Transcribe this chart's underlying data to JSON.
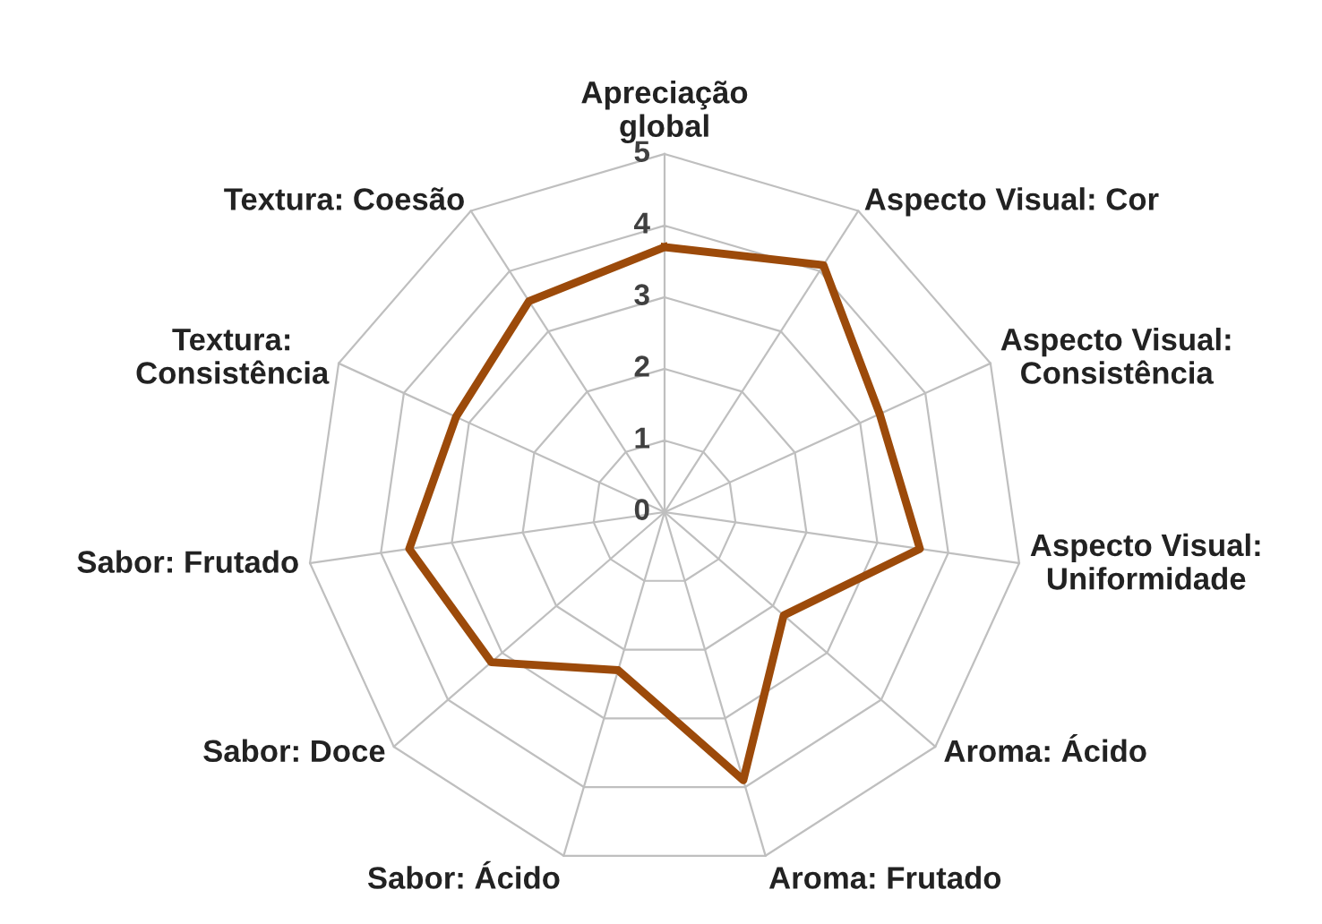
{
  "chart_data": {
    "type": "radar",
    "categories": [
      "Apreciação\nglobal",
      "Aspecto Visual: Cor",
      "Aspecto Visual:\nConsistência",
      "Aspecto Visual:\nUniformidade",
      "Aroma: Ácido",
      "Aroma: Frutado",
      "Sabor: Ácido",
      "Sabor: Doce",
      "Sabor: Frutado",
      "Textura:\nConsistência",
      "Textura: Coesão"
    ],
    "series": [
      {
        "color": "#9c4a0a",
        "values": [
          3.7,
          4.1,
          3.3,
          3.6,
          2.2,
          3.9,
          2.3,
          3.2,
          3.6,
          3.2,
          3.5
        ]
      }
    ],
    "ylim": [
      0,
      5
    ],
    "yticks": [
      0,
      1,
      2,
      3,
      4,
      5
    ],
    "grid": true,
    "marker": "none"
  }
}
